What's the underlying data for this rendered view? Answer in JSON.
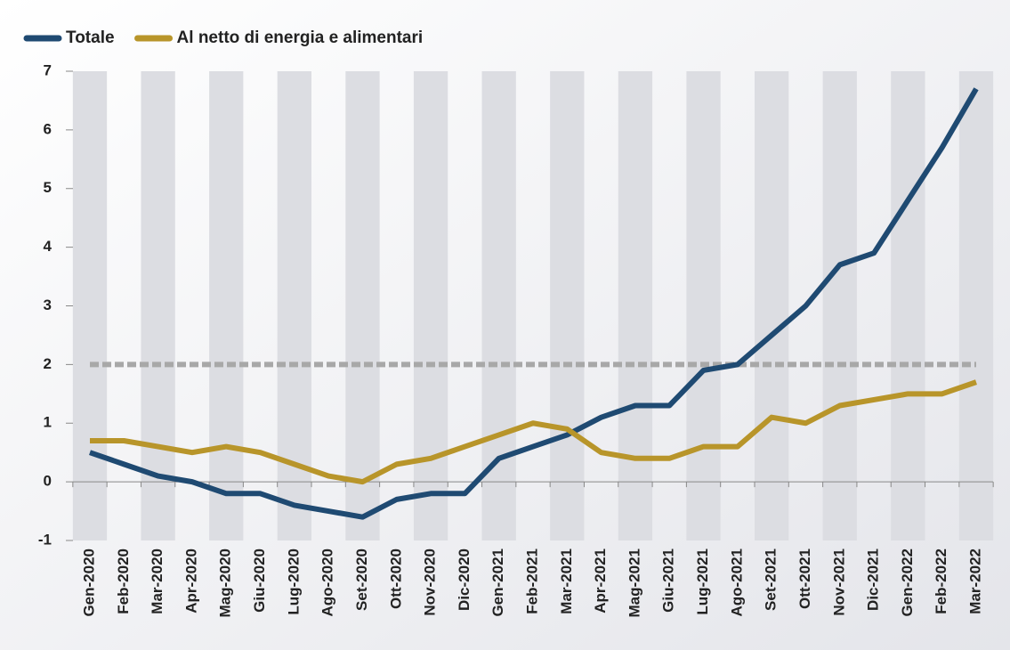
{
  "chart_data": {
    "type": "line",
    "categories": [
      "Gen-2020",
      "Feb-2020",
      "Mar-2020",
      "Apr-2020",
      "Mag-2020",
      "Giu-2020",
      "Lug-2020",
      "Ago-2020",
      "Set-2020",
      "Ott-2020",
      "Nov-2020",
      "Dic-2020",
      "Gen-2021",
      "Feb-2021",
      "Mar-2021",
      "Apr-2021",
      "Mag-2021",
      "Giu-2021",
      "Lug-2021",
      "Ago-2021",
      "Set-2021",
      "Ott-2021",
      "Nov-2021",
      "Dic-2021",
      "Gen-2022",
      "Feb-2022",
      "Mar-2022"
    ],
    "series": [
      {
        "name": "Totale",
        "color": "#1f4a72",
        "values": [
          0.5,
          0.3,
          0.1,
          0.0,
          -0.2,
          -0.2,
          -0.4,
          -0.5,
          -0.6,
          -0.3,
          -0.2,
          -0.2,
          0.4,
          0.6,
          0.8,
          1.1,
          1.3,
          1.3,
          1.9,
          2.0,
          2.5,
          3.0,
          3.7,
          3.9,
          4.8,
          5.7,
          6.7
        ]
      },
      {
        "name": "Al netto di energia e alimentari",
        "color": "#b8952a",
        "values": [
          0.7,
          0.7,
          0.6,
          0.5,
          0.6,
          0.5,
          0.3,
          0.1,
          0.0,
          0.3,
          0.4,
          0.6,
          0.8,
          1.0,
          0.9,
          0.5,
          0.4,
          0.4,
          0.6,
          0.6,
          1.1,
          1.0,
          1.3,
          1.4,
          1.5,
          1.5,
          1.7
        ]
      }
    ],
    "hline": {
      "value": 2,
      "color": "#a8a8a8",
      "dashed": true
    },
    "ylim": [
      -1,
      7
    ],
    "yticks": [
      -1,
      0,
      1,
      2,
      3,
      4,
      5,
      6,
      7
    ],
    "stripes": true,
    "legend": "top-left"
  }
}
